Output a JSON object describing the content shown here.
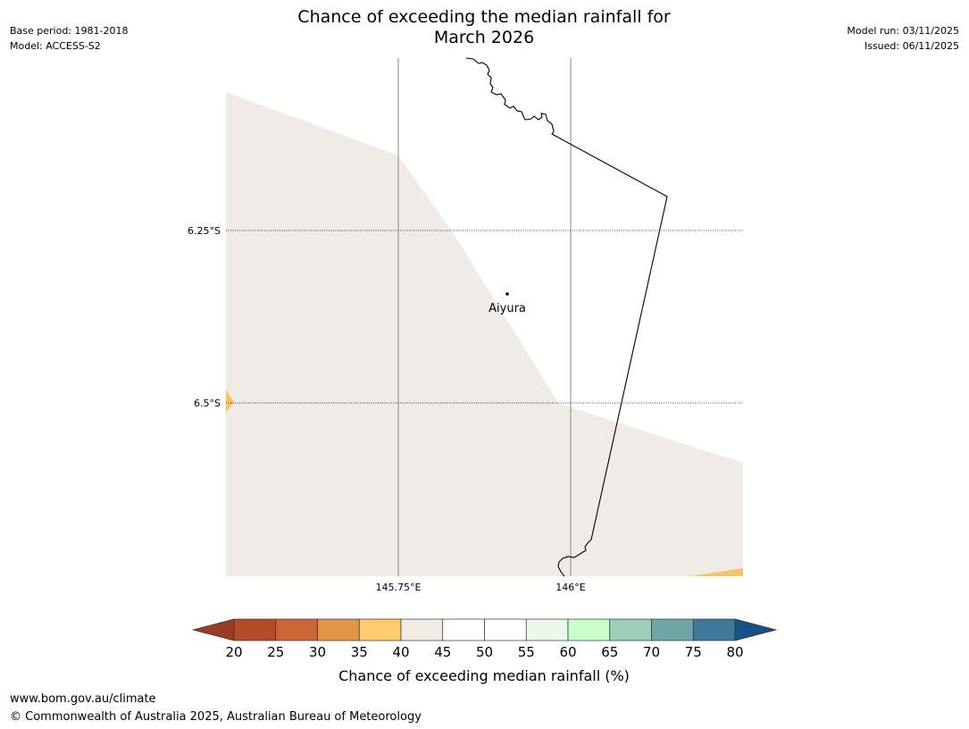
{
  "header": {
    "title_line1": "Chance of exceeding the median rainfall for",
    "title_line2": "March 2026",
    "base_period": "Base period: 1981-2018",
    "model": "Model: ACCESS-S2",
    "model_run": "Model run: 03/11/2025",
    "issued": "Issued: 06/11/2025"
  },
  "map": {
    "location_label": "Aiyura",
    "lat_labels": [
      "6.25°S",
      "6.5°S"
    ],
    "lon_labels": [
      "145.75°E",
      "146°E"
    ]
  },
  "legend": {
    "title": "Chance of exceeding median rainfall (%)",
    "ticks": [
      "20",
      "25",
      "30",
      "35",
      "40",
      "45",
      "50",
      "55",
      "60",
      "65",
      "70",
      "75",
      "80"
    ],
    "colors": [
      "#9c3b27",
      "#b44a28",
      "#cc6433",
      "#e29547",
      "#fdcb6e",
      "#f0ebe4",
      "#ffffff",
      "#ffffff",
      "#eaf7ea",
      "#c8fcc8",
      "#9ecfb9",
      "#6ea6a6",
      "#3f7898",
      "#175088"
    ]
  },
  "footer": {
    "url": "www.bom.gov.au/climate",
    "copyright": "© Commonwealth of Australia 2025, Australian Bureau of Meteorology"
  }
}
